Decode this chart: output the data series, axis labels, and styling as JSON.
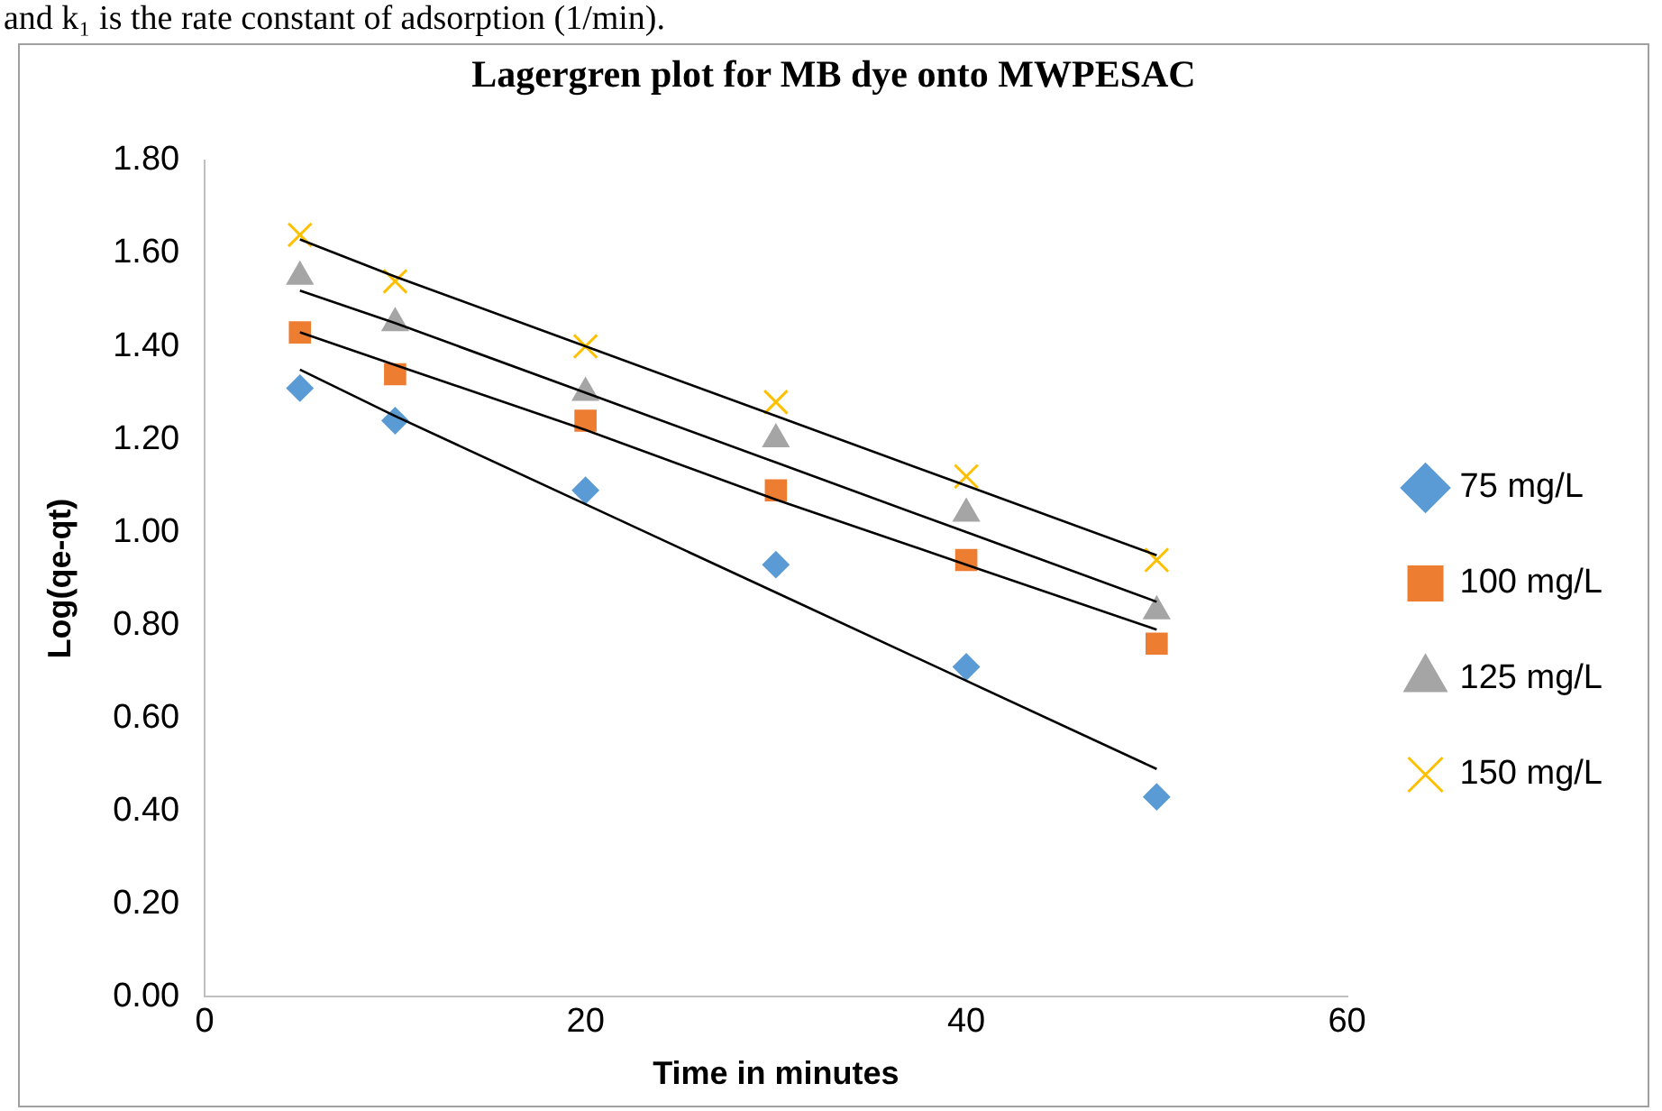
{
  "chart_data": {
    "type": "scatter",
    "title": "Lagergren plot for MB dye onto MWPESAC",
    "xlabel": "Time in minutes",
    "ylabel": "Log(qe-qt)",
    "annotations": [
      "and k₁ is the rate constant of adsorption (1/min)."
    ],
    "x": [
      5,
      10,
      20,
      30,
      40,
      50
    ],
    "series": [
      {
        "name": "75 mg/L",
        "color": "#5b9bd5",
        "marker": "diamond",
        "values": [
          1.31,
          1.24,
          1.09,
          0.93,
          0.71,
          0.43
        ]
      },
      {
        "name": "100 mg/L",
        "color": "#ed7d31",
        "marker": "square",
        "values": [
          1.43,
          1.34,
          1.24,
          1.09,
          0.94,
          0.76
        ]
      },
      {
        "name": "125 mg/L",
        "color": "#a5a5a5",
        "marker": "triangle",
        "values": [
          1.55,
          1.45,
          1.3,
          1.2,
          1.04,
          0.83
        ]
      },
      {
        "name": "150 mg/L",
        "color": "#ffc000",
        "marker": "cross",
        "values": [
          1.64,
          1.54,
          1.4,
          1.28,
          1.12,
          0.94
        ]
      },
      {
        "type": "line",
        "color": "#000000",
        "values": [
          1.35,
          1.25,
          1.06,
          0.87,
          0.68,
          0.49
        ]
      },
      {
        "type": "line",
        "color": "#000000",
        "values": [
          1.43,
          1.36,
          1.22,
          1.07,
          0.93,
          0.79
        ]
      },
      {
        "type": "line",
        "color": "#000000",
        "values": [
          1.52,
          1.45,
          1.3,
          1.15,
          1.0,
          0.85
        ]
      },
      {
        "type": "line",
        "color": "#000000",
        "values": [
          1.63,
          1.55,
          1.4,
          1.25,
          1.1,
          0.95
        ]
      }
    ],
    "xlim": [
      0,
      60
    ],
    "xticks": [
      0,
      20,
      40,
      60
    ],
    "ylim": [
      0,
      1.8
    ],
    "yticks": [
      {
        "value": 0,
        "label": "0.00"
      },
      {
        "value": 0.2,
        "label": "0.20"
      },
      {
        "value": 0.4,
        "label": "0.40"
      },
      {
        "value": 0.6,
        "label": "0.60"
      },
      {
        "value": 0.8,
        "label": "0.80"
      },
      {
        "value": 1,
        "label": "1.00"
      },
      {
        "value": 1.2,
        "label": "1.20"
      },
      {
        "value": 1.4,
        "label": "1.40"
      },
      {
        "value": 1.6,
        "label": "1.60"
      },
      {
        "value": 1.8,
        "label": "1.80"
      }
    ],
    "grid": false,
    "legend": "right"
  }
}
